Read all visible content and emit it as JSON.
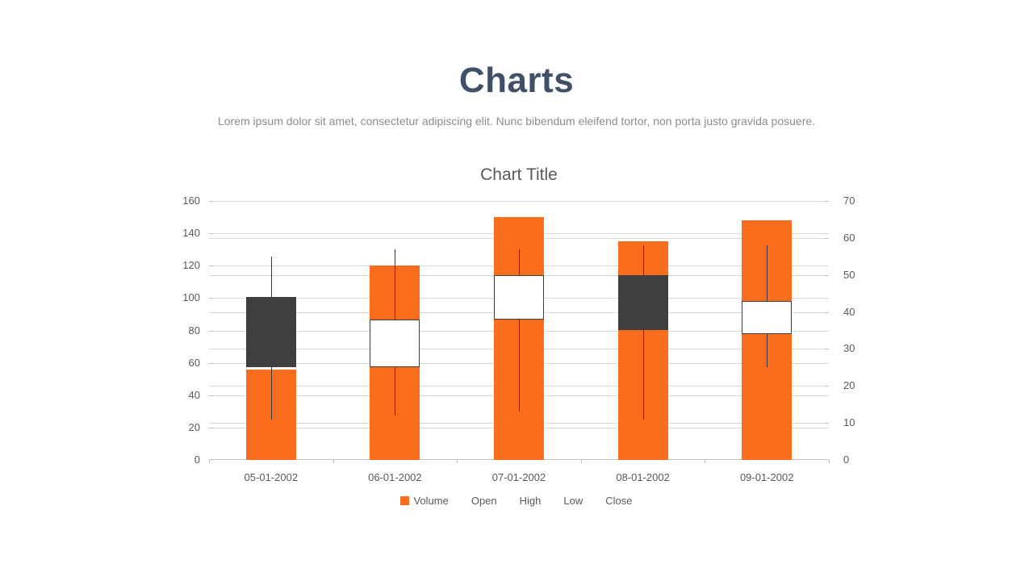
{
  "page": {
    "title": "Charts",
    "subtitle": "Lorem ipsum dolor sit amet, consectetur adipiscing elit. Nunc bibendum eleifend tortor, non porta justo gravida posuere."
  },
  "chart_data": {
    "type": "stock-volume-open-high-low-close",
    "title": "Chart Title",
    "categories": [
      "05-01-2002",
      "06-01-2002",
      "07-01-2002",
      "08-01-2002",
      "09-01-2002"
    ],
    "series": {
      "volume": {
        "name": "Volume",
        "type": "bar",
        "axis": "left",
        "values": [
          56,
          120,
          150,
          135,
          148
        ]
      },
      "open": {
        "name": "Open",
        "axis": "right",
        "values": [
          44,
          25,
          38,
          50,
          34
        ]
      },
      "high": {
        "name": "High",
        "axis": "right",
        "values": [
          55,
          57,
          57,
          58,
          58
        ]
      },
      "low": {
        "name": "Low",
        "axis": "right",
        "values": [
          11,
          12,
          13,
          11,
          25
        ]
      },
      "close": {
        "name": "Close",
        "axis": "right",
        "values": [
          25,
          38,
          50,
          35,
          43
        ]
      }
    },
    "left_axis": {
      "min": 0,
      "max": 160,
      "ticks": [
        0,
        20,
        40,
        60,
        80,
        100,
        120,
        140,
        160
      ]
    },
    "right_axis": {
      "min": 0,
      "max": 70,
      "ticks": [
        0,
        10,
        20,
        30,
        40,
        50,
        60,
        70
      ]
    },
    "legend": [
      {
        "label": "Volume",
        "swatch": true
      },
      {
        "label": "Open"
      },
      {
        "label": "High"
      },
      {
        "label": "Low"
      },
      {
        "label": "Close"
      }
    ],
    "legend_position": "bottom",
    "grid": true,
    "colors": {
      "volume": "#F96D1C",
      "candle_up": "#FFFFFF",
      "candle_down": "#3F3F3F",
      "candle_border": "#3F3F3F",
      "wick": "#3A3A3A",
      "grid": "#D9D9D9",
      "axis_line": "#BFBFBF",
      "labels": "#595959"
    }
  }
}
